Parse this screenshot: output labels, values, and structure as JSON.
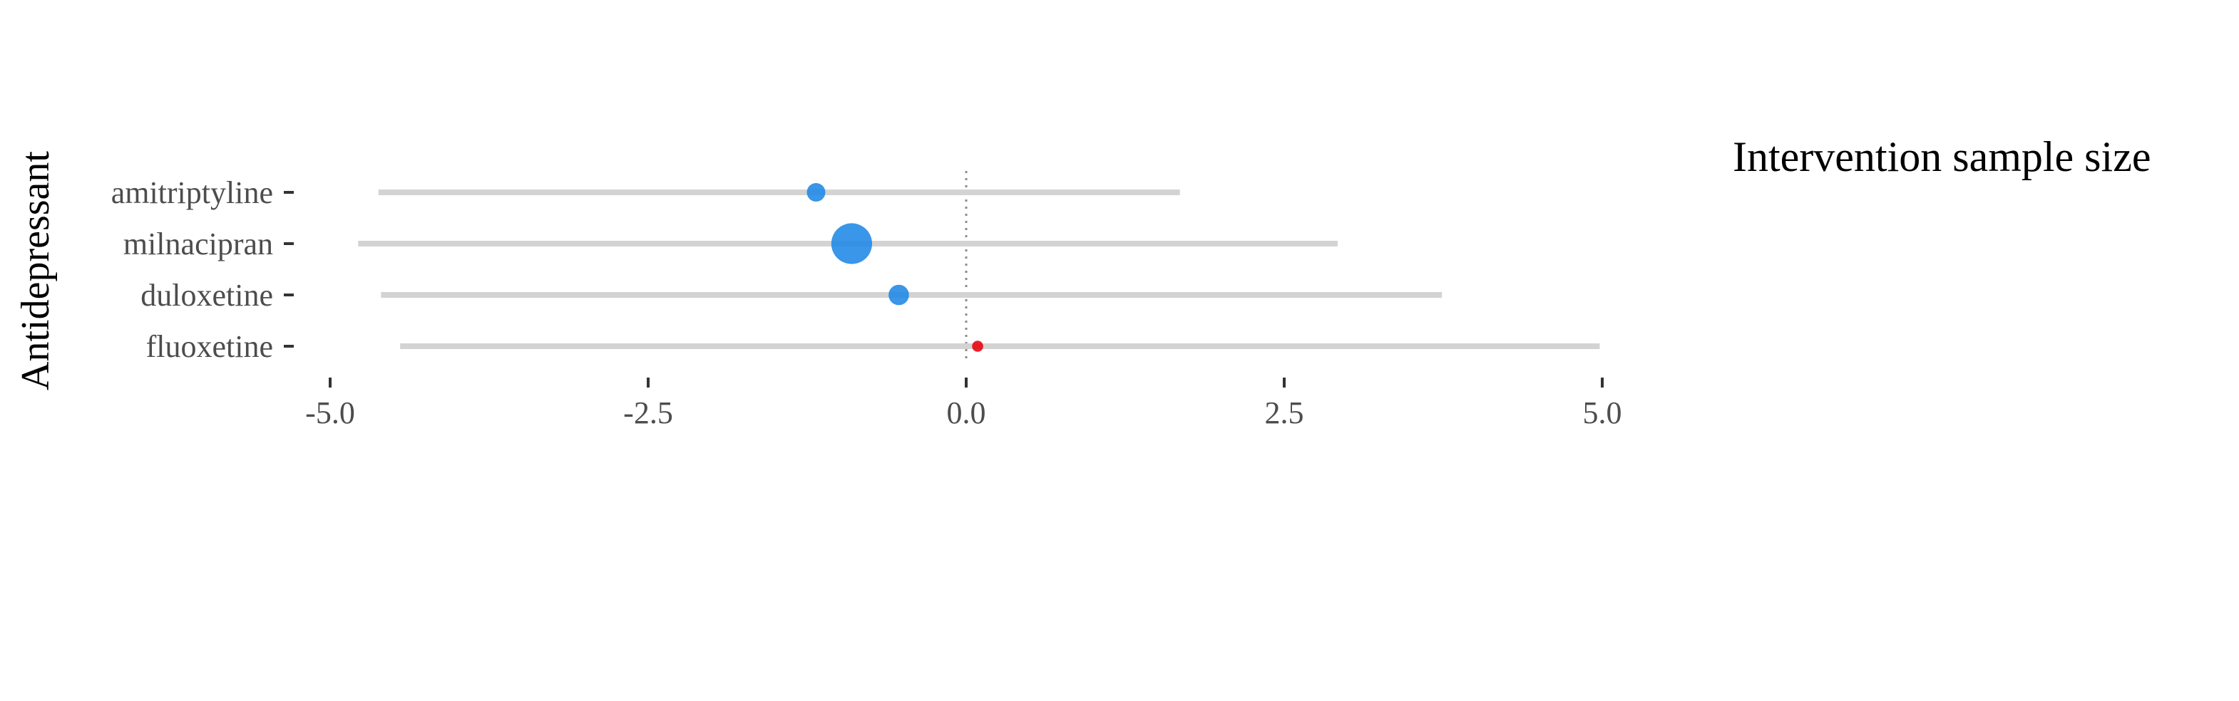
{
  "chart_data": {
    "type": "scatter",
    "title": "",
    "xlabel": "",
    "ylabel": "Antidepressant",
    "xlim": [
      -5.0,
      5.0
    ],
    "x_ticks": [
      -5.0,
      -2.5,
      0.0,
      2.5,
      5.0
    ],
    "x_tick_labels": [
      "-5.0",
      "-2.5",
      "0.0",
      "2.5",
      "5.0"
    ],
    "reference_line": 0.0,
    "categories": [
      "amitriptyline",
      "milnacipran",
      "duloxetine",
      "fluoxetine"
    ],
    "estimates": [
      -1.18,
      -0.9,
      -0.53,
      0.09
    ],
    "ci_low": [
      -4.62,
      -4.78,
      -4.6,
      -4.45
    ],
    "ci_high": [
      1.68,
      2.92,
      3.74,
      4.98
    ],
    "point_size_relative": [
      1.0,
      2.2,
      1.1,
      0.6
    ],
    "point_colors": [
      "#1e88e5",
      "#1e88e5",
      "#1e88e5",
      "#e8000b"
    ],
    "grid": false,
    "legend": {
      "title": "Intervention sample size",
      "position": "right"
    }
  },
  "colors": {
    "interval": "#d3d3d3",
    "point_default": "#1e88e5",
    "point_highlight": "#e8000b",
    "reference_line": "#8c8c8c",
    "tick_label": "#4d4d4d"
  }
}
